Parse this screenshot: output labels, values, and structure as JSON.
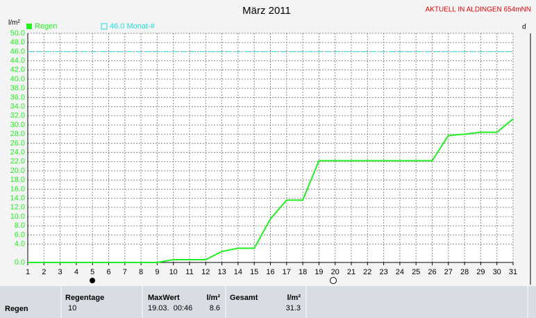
{
  "chart_data": {
    "type": "line",
    "title": "März 2011",
    "subtitle": "AKTUELL IN ALDINGEN 654mNN",
    "y_label": "l/m²",
    "x": [
      1,
      2,
      3,
      4,
      5,
      6,
      7,
      8,
      9,
      10,
      11,
      12,
      13,
      14,
      15,
      16,
      17,
      18,
      19,
      20,
      21,
      22,
      23,
      24,
      25,
      26,
      27,
      28,
      29,
      30,
      31
    ],
    "series": [
      {
        "name": "Regen",
        "color": "#22ee22",
        "values": [
          0,
          0,
          0,
          0,
          0,
          0,
          0,
          0,
          0,
          0.6,
          0.6,
          0.6,
          2.4,
          3.1,
          3.1,
          9.5,
          13.6,
          13.6,
          22.2,
          22.2,
          22.2,
          22.2,
          22.2,
          22.2,
          22.2,
          22.2,
          27.7,
          28.0,
          28.4,
          28.4,
          31.3
        ]
      }
    ],
    "reference": {
      "value": 46,
      "label": "46.0 Monat-#",
      "color": "#22dddd"
    },
    "xlim": [
      1,
      31
    ],
    "xticks": [
      1,
      2,
      3,
      4,
      5,
      6,
      7,
      8,
      9,
      10,
      11,
      12,
      13,
      14,
      15,
      16,
      17,
      18,
      19,
      20,
      21,
      22,
      23,
      24,
      25,
      26,
      27,
      28,
      29,
      30,
      31
    ],
    "ylim": [
      0,
      50
    ],
    "yticks": [
      {
        "value": 0,
        "label": "0.0"
      },
      {
        "value": 4,
        "label": "4.0"
      },
      {
        "value": 6,
        "label": "6.0"
      },
      {
        "value": 8,
        "label": "8.0"
      },
      {
        "value": 10,
        "label": "10.0"
      },
      {
        "value": 12,
        "label": "12.0"
      },
      {
        "value": 14,
        "label": "14.0"
      },
      {
        "value": 16,
        "label": "16.0"
      },
      {
        "value": 18,
        "label": "18.0"
      },
      {
        "value": 20,
        "label": "20.0"
      },
      {
        "value": 22,
        "label": "22.0"
      },
      {
        "value": 24,
        "label": "24.0"
      },
      {
        "value": 26,
        "label": "26.0"
      },
      {
        "value": 28,
        "label": "28.0"
      },
      {
        "value": 30,
        "label": "30.0"
      },
      {
        "value": 32,
        "label": "32.0"
      },
      {
        "value": 34,
        "label": "34.0"
      },
      {
        "value": 36,
        "label": "36.0"
      },
      {
        "value": 38,
        "label": "38.0"
      },
      {
        "value": 40,
        "label": "40.0"
      },
      {
        "value": 42,
        "label": "42.0"
      },
      {
        "value": 44,
        "label": "44.0"
      },
      {
        "value": 46,
        "label": "46.0"
      },
      {
        "value": 48,
        "label": "48.0"
      },
      {
        "value": 50,
        "label": "50.0"
      }
    ],
    "grid": true
  },
  "summary": {
    "row_label": "Regen",
    "rain_days": {
      "header": "Regentage",
      "value": "10"
    },
    "max": {
      "header": "MaxWert",
      "unit": "l/m²",
      "time": "19.03.  00:46",
      "value": "8.6"
    },
    "total": {
      "header": "Gesamt",
      "unit": "l/m²",
      "value": "31.3"
    }
  }
}
